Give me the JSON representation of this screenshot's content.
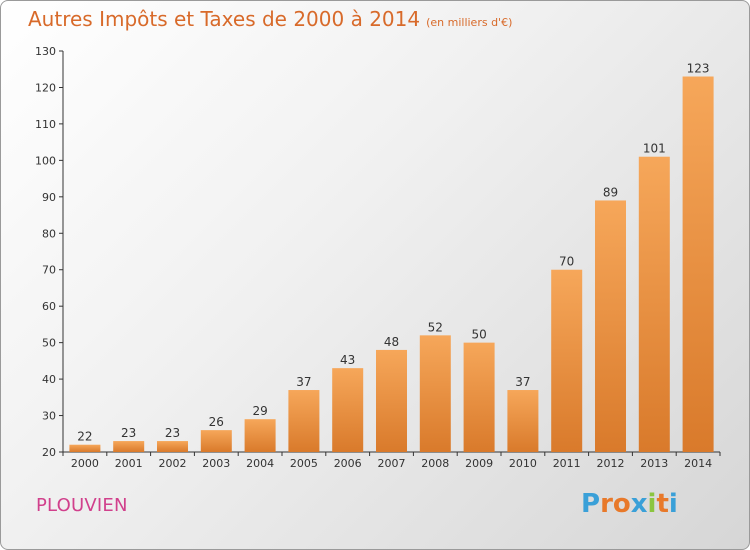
{
  "header": {
    "title": "Autres Impôts et Taxes de 2000 à 2014",
    "unit": "(en milliers d'€)"
  },
  "commune": "PLOUVIEN",
  "logo": {
    "text": "Proxiti",
    "colors": [
      "#3aa0d8",
      "#e8792a",
      "#e8792a",
      "#3aa0d8",
      "#8bc53f",
      "#e8792a",
      "#3aa0d8"
    ]
  },
  "colors": {
    "title": "#d86a2a",
    "commune": "#d1408c",
    "bar_light": "#f6a75a",
    "bar_dark": "#d97a2b",
    "axis": "#333333"
  },
  "chart_data": {
    "type": "bar",
    "title": "Autres Impôts et Taxes de 2000 à 2014",
    "subtitle": "(en milliers d'€)",
    "xlabel": "",
    "ylabel": "",
    "categories": [
      "2000",
      "2001",
      "2002",
      "2003",
      "2004",
      "2005",
      "2006",
      "2007",
      "2008",
      "2009",
      "2010",
      "2011",
      "2012",
      "2013",
      "2014"
    ],
    "values": [
      22,
      23,
      23,
      26,
      29,
      37,
      43,
      48,
      52,
      50,
      37,
      70,
      89,
      101,
      123
    ],
    "ylim": [
      20,
      130
    ],
    "yticks": [
      20,
      30,
      40,
      50,
      60,
      70,
      80,
      90,
      100,
      110,
      120,
      130
    ],
    "grid": false,
    "data_labels": true
  }
}
